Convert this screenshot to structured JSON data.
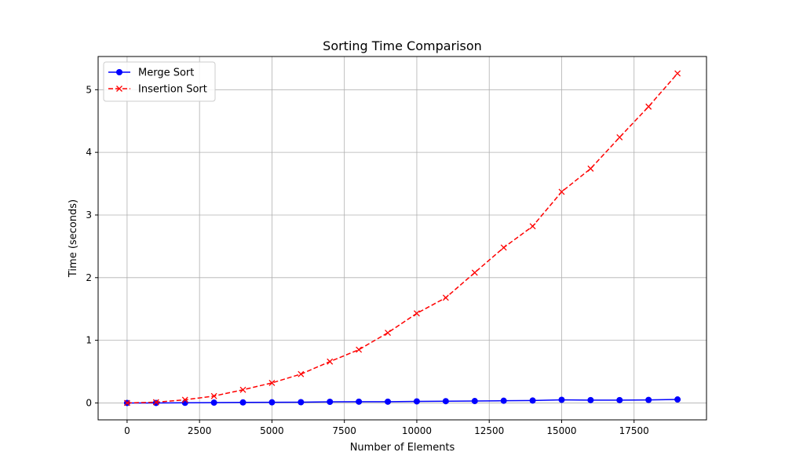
{
  "chart_data": {
    "type": "line",
    "title": "Sorting Time Comparison",
    "xlabel": "Number of Elements",
    "ylabel": "Time (seconds)",
    "xlim": [
      -1000,
      20000
    ],
    "ylim": [
      -0.27,
      5.53
    ],
    "xticks": [
      0,
      2500,
      5000,
      7500,
      10000,
      12500,
      15000,
      17500
    ],
    "xtick_labels": [
      "0",
      "2500",
      "5000",
      "7500",
      "10000",
      "12500",
      "15000",
      "17500"
    ],
    "yticks": [
      0,
      1,
      2,
      3,
      4,
      5
    ],
    "ytick_labels": [
      "0",
      "1",
      "2",
      "3",
      "4",
      "5"
    ],
    "grid": true,
    "legend_position": "upper-left",
    "x": [
      0,
      1000,
      2000,
      3000,
      4000,
      5000,
      6000,
      7000,
      8000,
      9000,
      10000,
      11000,
      12000,
      13000,
      14000,
      15000,
      16000,
      17000,
      18000,
      19000
    ],
    "series": [
      {
        "name": "Merge Sort",
        "color": "#0000ff",
        "line_style": "solid",
        "marker": "circle",
        "values": [
          0.0,
          0.0,
          0.002,
          0.005,
          0.008,
          0.01,
          0.012,
          0.018,
          0.02,
          0.02,
          0.025,
          0.028,
          0.03,
          0.035,
          0.038,
          0.05,
          0.045,
          0.045,
          0.048,
          0.055
        ]
      },
      {
        "name": "Insertion Sort",
        "color": "#ff0000",
        "line_style": "dashed",
        "marker": "x",
        "values": [
          0.0,
          0.012,
          0.05,
          0.11,
          0.21,
          0.32,
          0.46,
          0.66,
          0.85,
          1.12,
          1.43,
          1.68,
          2.08,
          2.48,
          2.82,
          3.37,
          3.74,
          4.24,
          4.73,
          5.26
        ]
      }
    ]
  }
}
